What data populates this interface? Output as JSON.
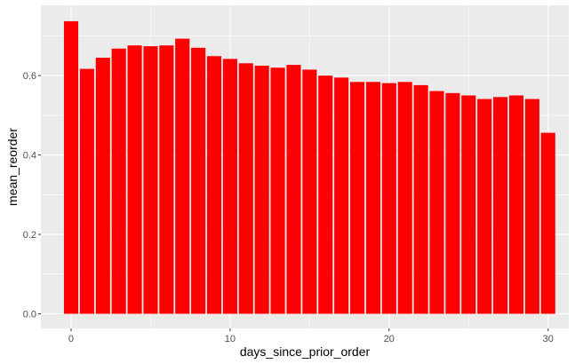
{
  "chart_data": {
    "type": "bar",
    "xlabel": "days_since_prior_order",
    "ylabel": "mean_reorder",
    "x": [
      0,
      1,
      2,
      3,
      4,
      5,
      6,
      7,
      8,
      9,
      10,
      11,
      12,
      13,
      14,
      15,
      16,
      17,
      18,
      19,
      20,
      21,
      22,
      23,
      24,
      25,
      26,
      27,
      28,
      29,
      30
    ],
    "values": [
      0.737,
      0.617,
      0.645,
      0.668,
      0.676,
      0.674,
      0.676,
      0.693,
      0.67,
      0.649,
      0.642,
      0.631,
      0.625,
      0.62,
      0.627,
      0.615,
      0.6,
      0.595,
      0.584,
      0.584,
      0.581,
      0.584,
      0.576,
      0.561,
      0.556,
      0.55,
      0.541,
      0.546,
      0.55,
      0.541,
      0.456
    ],
    "xlim": [
      -1.9,
      31.3
    ],
    "ylim": [
      -0.037,
      0.777
    ],
    "x_ticks": [
      0,
      10,
      20,
      30
    ],
    "y_ticks": [
      0.0,
      0.2,
      0.4,
      0.6
    ],
    "y_tick_labels": [
      "0.0",
      "0.2",
      "0.4",
      "0.6"
    ],
    "grid": true,
    "bar_color": "#FF0000",
    "panel_color": "#EBEBEB",
    "grid_color": "#FFFFFF"
  }
}
